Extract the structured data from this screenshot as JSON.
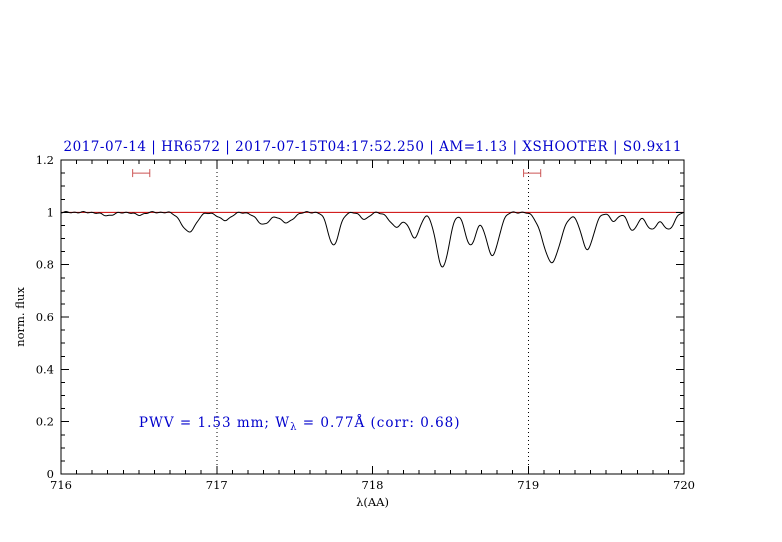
{
  "page": {
    "background": "#ffffff"
  },
  "chart_data": {
    "type": "line",
    "title": "2017-07-14 | HR6572 | 2017-07-15T04:17:52.250 | AM=1.13 | XSHOOTER | S0.9x11",
    "title_color": "#0000cc",
    "xlabel": "λ(AA)",
    "ylabel": "norm. flux",
    "xlim": [
      716,
      720
    ],
    "ylim": [
      0,
      1.2
    ],
    "x_ticks": [
      716,
      717,
      718,
      719,
      720
    ],
    "x_tick_labels": [
      "716",
      "717",
      "718",
      "719",
      "720"
    ],
    "x_minor_step": 0.1,
    "y_ticks": [
      0,
      0.2,
      0.4,
      0.6,
      0.8,
      1,
      1.2
    ],
    "y_tick_labels": [
      "0",
      "0.2",
      "0.4",
      "0.6",
      "0.8",
      "1",
      "1.2"
    ],
    "y_minor_step": 0.05,
    "grid": false,
    "line_color": "#000000",
    "continuum": {
      "y": 1.0,
      "color": "#cc0000"
    },
    "dotted_vlines": {
      "x": [
        717,
        719
      ],
      "color": "#000000"
    },
    "range_markers": {
      "color": "#cc5555",
      "y": 1.15,
      "spans": [
        [
          716.46,
          716.57
        ],
        [
          718.97,
          719.08
        ]
      ]
    },
    "annotation": {
      "pre": "PWV = 1.53 mm; W",
      "sub": "λ",
      "post": " = 0.77Å (corr: 0.68)",
      "color": "#0000cc",
      "x": 716.5,
      "y": 0.18
    },
    "spectrum_model": {
      "continuum_level": 1.0,
      "noise_amplitude": 0.003,
      "absorption_lines": [
        {
          "center": 716.3,
          "depth": 0.012,
          "sigma": 0.04
        },
        {
          "center": 716.5,
          "depth": 0.01,
          "sigma": 0.03
        },
        {
          "center": 716.82,
          "depth": 0.075,
          "sigma": 0.045
        },
        {
          "center": 717.05,
          "depth": 0.03,
          "sigma": 0.04
        },
        {
          "center": 717.3,
          "depth": 0.045,
          "sigma": 0.045
        },
        {
          "center": 717.45,
          "depth": 0.04,
          "sigma": 0.04
        },
        {
          "center": 717.75,
          "depth": 0.125,
          "sigma": 0.035
        },
        {
          "center": 717.95,
          "depth": 0.025,
          "sigma": 0.03
        },
        {
          "center": 718.15,
          "depth": 0.055,
          "sigma": 0.04
        },
        {
          "center": 718.27,
          "depth": 0.095,
          "sigma": 0.035
        },
        {
          "center": 718.45,
          "depth": 0.21,
          "sigma": 0.04
        },
        {
          "center": 718.63,
          "depth": 0.125,
          "sigma": 0.035
        },
        {
          "center": 718.77,
          "depth": 0.165,
          "sigma": 0.04
        },
        {
          "center": 719.15,
          "depth": 0.19,
          "sigma": 0.055
        },
        {
          "center": 719.38,
          "depth": 0.14,
          "sigma": 0.04
        },
        {
          "center": 719.55,
          "depth": 0.035,
          "sigma": 0.025
        },
        {
          "center": 719.67,
          "depth": 0.07,
          "sigma": 0.03
        },
        {
          "center": 719.79,
          "depth": 0.065,
          "sigma": 0.035
        },
        {
          "center": 719.9,
          "depth": 0.065,
          "sigma": 0.035
        }
      ]
    }
  }
}
